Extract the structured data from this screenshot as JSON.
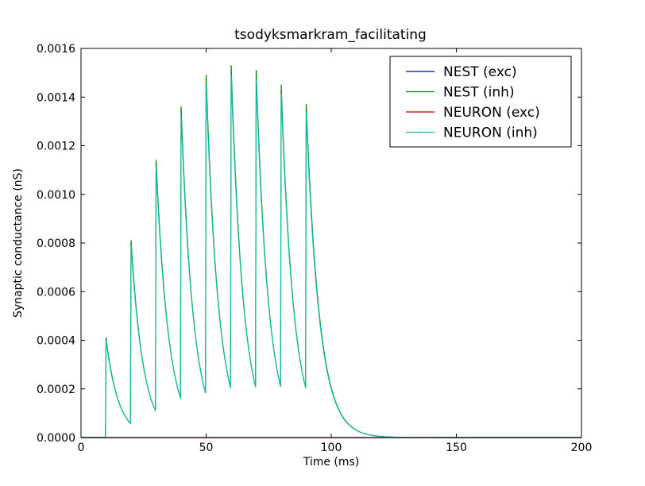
{
  "chart_data": {
    "type": "line",
    "title": "tsodyksmarkram_facilitating",
    "xlabel": "Time (ms)",
    "ylabel": "Synaptic conductance (nS)",
    "xlim": [
      0,
      200
    ],
    "ylim": [
      0,
      0.0016
    ],
    "x_ticks": [
      "0",
      "50",
      "100",
      "150",
      "200"
    ],
    "y_ticks": [
      "0.0000",
      "0.0002",
      "0.0004",
      "0.0006",
      "0.0008",
      "0.0010",
      "0.0012",
      "0.0014",
      "0.0016"
    ],
    "grid": false,
    "legend_position": "top-right",
    "spike_times": [
      10,
      20,
      30,
      40,
      50,
      60,
      70,
      80,
      90
    ],
    "peak_values": [
      0.00041,
      0.00081,
      0.00114,
      0.00136,
      0.00149,
      0.00153,
      0.00151,
      0.00145,
      0.00137
    ],
    "trough_values_before_next_spike": [
      5.5e-05,
      0.000105,
      0.000155,
      0.000175,
      0.000195,
      0.000198,
      0.0002,
      0.000195
    ],
    "decay_tau_ms": 5,
    "series": [
      {
        "name": "NEST (exc)",
        "color": "#0000aa",
        "shape": "flat_zero"
      },
      {
        "name": "NEST (inh)",
        "color": "#007f00",
        "shape": "facilitating",
        "peak_scale": 1.0
      },
      {
        "name": "NEURON (exc)",
        "color": "#cc0000",
        "shape": "flat_zero"
      },
      {
        "name": "NEURON (inh)",
        "color": "#11bfa6",
        "shape": "facilitating",
        "peak_scale": 0.975
      }
    ]
  }
}
